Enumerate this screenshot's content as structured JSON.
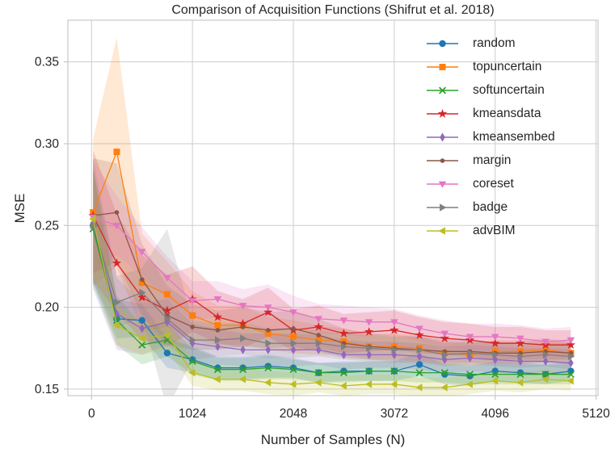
{
  "chart_data": {
    "type": "line",
    "title": "Comparison of Acquisition Functions (Shifrut et al. 2018)",
    "xlabel": "Number of Samples (N)",
    "ylabel": "MSE",
    "grid": true,
    "legend_position": "upper right",
    "background": "#ffffff",
    "grid_color": "#cdcdcd",
    "spine_color": "#c7c7c7",
    "text_color": "#262626",
    "xlim": [
      -240,
      5140
    ],
    "ylim": [
      0.146,
      0.3755
    ],
    "x_ticks": [
      0,
      1024,
      2048,
      3072,
      4096,
      5120
    ],
    "y_ticks": [
      0.15,
      0.2,
      0.25,
      0.3,
      0.35
    ],
    "x": [
      16,
      256,
      512,
      768,
      1024,
      1280,
      1536,
      1792,
      2048,
      2304,
      2560,
      2816,
      3072,
      3328,
      3584,
      3840,
      4096,
      4352,
      4608,
      4864
    ],
    "series": [
      {
        "name": "random",
        "color": "#1f77b4",
        "marker": "circle",
        "values": [
          0.25,
          0.193,
          0.192,
          0.172,
          0.168,
          0.163,
          0.163,
          0.164,
          0.163,
          0.16,
          0.161,
          0.161,
          0.161,
          0.165,
          0.159,
          0.158,
          0.161,
          0.16,
          0.159,
          0.161
        ],
        "band": [
          0.035,
          0.012,
          0.01,
          0.009,
          0.008,
          0.007,
          0.007,
          0.007,
          0.006,
          0.006,
          0.006,
          0.006,
          0.006,
          0.007,
          0.006,
          0.006,
          0.006,
          0.006,
          0.006,
          0.006
        ]
      },
      {
        "name": "topuncertain",
        "color": "#ff7f0e",
        "marker": "square",
        "values": [
          0.258,
          0.295,
          0.215,
          0.208,
          0.195,
          0.189,
          0.189,
          0.184,
          0.182,
          0.18,
          0.179,
          0.176,
          0.176,
          0.175,
          0.172,
          0.171,
          0.173,
          0.173,
          0.174,
          0.172
        ],
        "band": [
          0.045,
          0.07,
          0.03,
          0.02,
          0.015,
          0.012,
          0.012,
          0.01,
          0.01,
          0.009,
          0.008,
          0.008,
          0.008,
          0.008,
          0.007,
          0.007,
          0.007,
          0.007,
          0.007,
          0.007
        ]
      },
      {
        "name": "softuncertain",
        "color": "#2ca02c",
        "marker": "x",
        "values": [
          0.248,
          0.192,
          0.177,
          0.18,
          0.167,
          0.162,
          0.162,
          0.163,
          0.162,
          0.16,
          0.16,
          0.161,
          0.161,
          0.16,
          0.16,
          0.159,
          0.159,
          0.159,
          0.159,
          0.159
        ],
        "band": [
          0.035,
          0.015,
          0.012,
          0.01,
          0.008,
          0.007,
          0.007,
          0.007,
          0.006,
          0.006,
          0.006,
          0.006,
          0.006,
          0.006,
          0.006,
          0.006,
          0.006,
          0.006,
          0.006,
          0.006
        ]
      },
      {
        "name": "kmeansdata",
        "color": "#d62728",
        "marker": "star",
        "values": [
          0.256,
          0.227,
          0.206,
          0.198,
          0.205,
          0.194,
          0.19,
          0.197,
          0.186,
          0.188,
          0.184,
          0.185,
          0.186,
          0.183,
          0.181,
          0.18,
          0.178,
          0.178,
          0.177,
          0.177
        ],
        "band": [
          0.04,
          0.03,
          0.026,
          0.022,
          0.02,
          0.016,
          0.015,
          0.015,
          0.013,
          0.013,
          0.012,
          0.012,
          0.012,
          0.011,
          0.01,
          0.01,
          0.01,
          0.01,
          0.009,
          0.009
        ]
      },
      {
        "name": "kmeansembed",
        "color": "#9467bd",
        "marker": "thin-diamond",
        "values": [
          0.251,
          0.196,
          0.187,
          0.191,
          0.178,
          0.176,
          0.174,
          0.174,
          0.174,
          0.174,
          0.171,
          0.171,
          0.171,
          0.17,
          0.168,
          0.169,
          0.168,
          0.167,
          0.167,
          0.166
        ],
        "band": [
          0.04,
          0.022,
          0.016,
          0.014,
          0.012,
          0.011,
          0.01,
          0.01,
          0.01,
          0.009,
          0.009,
          0.008,
          0.008,
          0.008,
          0.008,
          0.008,
          0.008,
          0.008,
          0.008,
          0.008
        ]
      },
      {
        "name": "margin",
        "color": "#8c564b",
        "marker": "dot",
        "values": [
          0.256,
          0.258,
          0.217,
          0.195,
          0.188,
          0.186,
          0.188,
          0.186,
          0.187,
          0.183,
          0.178,
          0.176,
          0.175,
          0.174,
          0.173,
          0.173,
          0.172,
          0.172,
          0.173,
          0.172
        ],
        "band": [
          0.035,
          0.03,
          0.022,
          0.018,
          0.014,
          0.012,
          0.012,
          0.011,
          0.011,
          0.01,
          0.009,
          0.008,
          0.008,
          0.008,
          0.007,
          0.007,
          0.007,
          0.007,
          0.007,
          0.007
        ]
      },
      {
        "name": "coreset",
        "color": "#e377c2",
        "marker": "triangle-down",
        "values": [
          0.255,
          0.25,
          0.234,
          0.218,
          0.204,
          0.205,
          0.201,
          0.2,
          0.197,
          0.193,
          0.192,
          0.191,
          0.191,
          0.187,
          0.184,
          0.182,
          0.182,
          0.181,
          0.179,
          0.18
        ],
        "band": [
          0.035,
          0.018,
          0.015,
          0.013,
          0.012,
          0.011,
          0.01,
          0.014,
          0.01,
          0.009,
          0.009,
          0.009,
          0.008,
          0.008,
          0.008,
          0.008,
          0.008,
          0.008,
          0.008,
          0.008
        ]
      },
      {
        "name": "badge",
        "color": "#7f7f7f",
        "marker": "triangle-right",
        "values": [
          0.25,
          0.203,
          0.209,
          0.193,
          0.18,
          0.18,
          0.181,
          0.178,
          0.178,
          0.178,
          0.176,
          0.175,
          0.174,
          0.174,
          0.171,
          0.172,
          0.171,
          0.17,
          0.171,
          0.17
        ],
        "band": [
          0.035,
          0.016,
          0.015,
          0.055,
          0.012,
          0.01,
          0.01,
          0.009,
          0.009,
          0.008,
          0.008,
          0.008,
          0.008,
          0.008,
          0.007,
          0.007,
          0.007,
          0.007,
          0.007,
          0.008
        ]
      },
      {
        "name": "advBIM",
        "color": "#bcbd22",
        "marker": "triangle-left",
        "values": [
          0.254,
          0.189,
          0.181,
          0.183,
          0.16,
          0.156,
          0.156,
          0.154,
          0.153,
          0.154,
          0.152,
          0.153,
          0.153,
          0.151,
          0.151,
          0.153,
          0.155,
          0.154,
          0.156,
          0.155
        ],
        "band": [
          0.035,
          0.012,
          0.01,
          0.009,
          0.008,
          0.007,
          0.007,
          0.007,
          0.007,
          0.006,
          0.006,
          0.006,
          0.006,
          0.006,
          0.006,
          0.006,
          0.006,
          0.006,
          0.006,
          0.006
        ]
      }
    ]
  }
}
